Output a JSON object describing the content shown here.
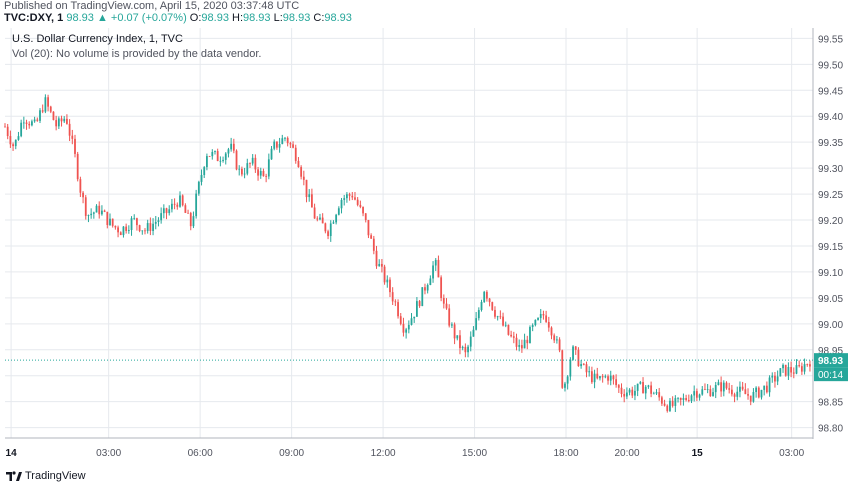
{
  "header": {
    "published": "Published on TradingView.com, April 15, 2020 03:37:48 UTC",
    "symbol": "TVC:DXY, 1",
    "last": "98.93",
    "change": "▲ +0.07 (+0.07%)",
    "open_label": "O:",
    "open": "98.93",
    "high_label": "H:",
    "high": "98.93",
    "low_label": "L:",
    "low": "98.93",
    "close_label": "C:",
    "close": "98.93"
  },
  "legend": {
    "title": "U.S. Dollar Currency Index, 1, TVC",
    "volume_note": "Vol (20): No volume is provided by the data vendor."
  },
  "footer": {
    "brand": "TradingView"
  },
  "colors": {
    "up": "#26a69a",
    "down": "#ef5350",
    "grid": "#e6e9ee",
    "axis_text": "#50535e",
    "price_tag": "#26a69a"
  },
  "icons": {
    "brand": "tradingview-logo-icon"
  },
  "chart_data": {
    "type": "candlestick",
    "title": "U.S. Dollar Currency Index, 1, TVC",
    "grid": true,
    "ylim": [
      98.78,
      99.57
    ],
    "y_ticks": [
      "99.55",
      "99.50",
      "99.45",
      "99.40",
      "99.35",
      "99.30",
      "99.25",
      "99.20",
      "99.15",
      "99.10",
      "99.05",
      "99.00",
      "98.95",
      "98.90",
      "98.85",
      "98.80"
    ],
    "x_ticks": [
      {
        "label": "14",
        "bold": true,
        "t": 0
      },
      {
        "label": "03:00",
        "bold": false,
        "t": 3.2
      },
      {
        "label": "06:00",
        "bold": false,
        "t": 6.2
      },
      {
        "label": "09:00",
        "bold": false,
        "t": 9.2
      },
      {
        "label": "12:00",
        "bold": false,
        "t": 12.2
      },
      {
        "label": "15:00",
        "bold": false,
        "t": 15.2
      },
      {
        "label": "18:00",
        "bold": false,
        "t": 18.2
      },
      {
        "label": "20:00",
        "bold": false,
        "t": 20.2
      },
      {
        "label": "15",
        "bold": true,
        "t": 22.5
      },
      {
        "label": "03:00",
        "bold": false,
        "t": 25.6
      }
    ],
    "x_range": [
      -0.2,
      26.3
    ],
    "close_path": [
      [
        -0.2,
        99.38
      ],
      [
        0.1,
        99.34
      ],
      [
        0.4,
        99.4
      ],
      [
        0.8,
        99.38
      ],
      [
        1.1,
        99.43
      ],
      [
        1.5,
        99.38
      ],
      [
        1.8,
        99.4
      ],
      [
        2.1,
        99.32
      ],
      [
        2.3,
        99.25
      ],
      [
        2.5,
        99.21
      ],
      [
        2.9,
        99.22
      ],
      [
        3.3,
        99.19
      ],
      [
        3.6,
        99.18
      ],
      [
        4.0,
        99.2
      ],
      [
        4.4,
        99.18
      ],
      [
        4.8,
        99.2
      ],
      [
        5.2,
        99.22
      ],
      [
        5.5,
        99.24
      ],
      [
        5.9,
        99.19
      ],
      [
        6.1,
        99.25
      ],
      [
        6.4,
        99.33
      ],
      [
        6.8,
        99.32
      ],
      [
        7.2,
        99.34
      ],
      [
        7.5,
        99.29
      ],
      [
        7.9,
        99.31
      ],
      [
        8.3,
        99.28
      ],
      [
        8.6,
        99.34
      ],
      [
        9.0,
        99.36
      ],
      [
        9.4,
        99.32
      ],
      [
        9.7,
        99.25
      ],
      [
        10.0,
        99.2
      ],
      [
        10.4,
        99.18
      ],
      [
        10.8,
        99.24
      ],
      [
        11.2,
        99.25
      ],
      [
        11.6,
        99.2
      ],
      [
        12.0,
        99.12
      ],
      [
        12.3,
        99.08
      ],
      [
        12.6,
        99.04
      ],
      [
        12.9,
        98.99
      ],
      [
        13.2,
        99.02
      ],
      [
        13.5,
        99.06
      ],
      [
        13.9,
        99.12
      ],
      [
        14.2,
        99.03
      ],
      [
        14.6,
        98.97
      ],
      [
        14.9,
        98.94
      ],
      [
        15.2,
        98.99
      ],
      [
        15.5,
        99.07
      ],
      [
        15.9,
        99.02
      ],
      [
        16.3,
        98.98
      ],
      [
        16.7,
        98.95
      ],
      [
        17.1,
        98.99
      ],
      [
        17.5,
        99.02
      ],
      [
        17.8,
        98.98
      ],
      [
        18.0,
        98.94
      ],
      [
        18.1,
        98.87
      ],
      [
        18.4,
        98.95
      ],
      [
        18.8,
        98.91
      ],
      [
        19.2,
        98.89
      ],
      [
        19.6,
        98.9
      ],
      [
        20.0,
        98.87
      ],
      [
        20.4,
        98.87
      ],
      [
        20.8,
        98.88
      ],
      [
        21.2,
        98.86
      ],
      [
        21.6,
        98.84
      ],
      [
        22.0,
        98.85
      ],
      [
        22.4,
        98.87
      ],
      [
        22.8,
        98.87
      ],
      [
        23.3,
        98.88
      ],
      [
        23.8,
        98.87
      ],
      [
        24.3,
        98.86
      ],
      [
        24.8,
        98.88
      ],
      [
        25.3,
        98.91
      ],
      [
        25.8,
        98.91
      ],
      [
        26.2,
        98.93
      ]
    ],
    "last_price": "98.93",
    "countdown": "00:14"
  }
}
